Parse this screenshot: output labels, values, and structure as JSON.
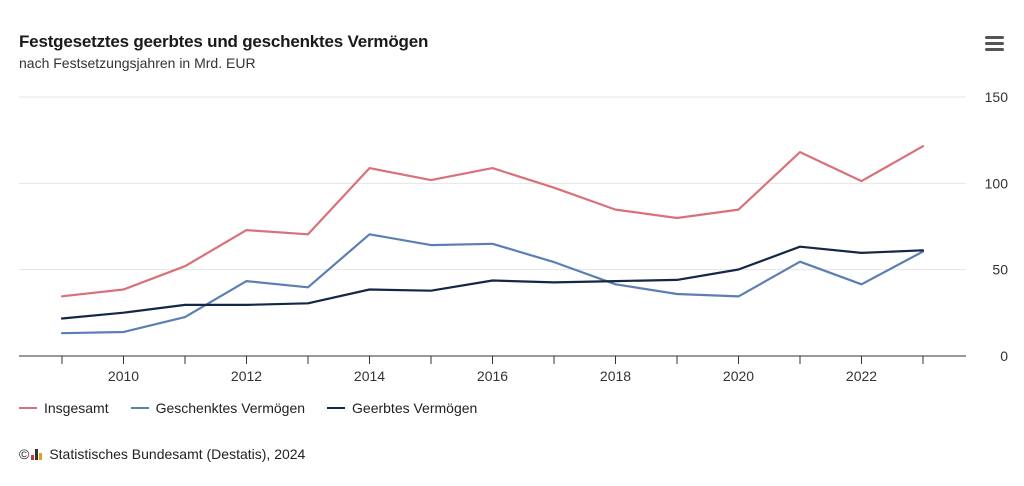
{
  "header": {
    "title": "Festgesetztes geerbtes und geschenktes Vermögen",
    "subtitle": "nach Festsetzungsjahren in Mrd. EUR",
    "menu_icon": "hamburger-menu-icon"
  },
  "credits": {
    "copyright_symbol": "©",
    "text": "Statistisches Bundesamt (Destatis), 2024",
    "logo_icon": "destatis-logo-icon"
  },
  "chart_data": {
    "type": "line",
    "x": [
      2009,
      2010,
      2011,
      2012,
      2013,
      2014,
      2015,
      2016,
      2017,
      2018,
      2019,
      2020,
      2021,
      2022,
      2023
    ],
    "x_tick_labels": [
      "2010",
      "2012",
      "2014",
      "2016",
      "2018",
      "2020",
      "2022"
    ],
    "y_tick_labels": [
      "0",
      "50",
      "100",
      "150"
    ],
    "ylim": [
      0,
      150
    ],
    "xlim": [
      2008.3,
      2023.7
    ],
    "y_axis_side": "right",
    "grid": true,
    "legend_position": "bottom-left",
    "series": [
      {
        "name": "Insgesamt",
        "color": "#d9717a",
        "values": [
          34.6,
          38.5,
          52.0,
          72.9,
          70.5,
          108.8,
          101.9,
          108.8,
          97.5,
          84.8,
          79.9,
          84.8,
          118.1,
          101.3,
          121.5
        ]
      },
      {
        "name": "Geschenktes Vermögen",
        "color": "#5b7fb3",
        "values": [
          13.2,
          13.9,
          22.5,
          43.4,
          39.8,
          70.5,
          64.2,
          65.0,
          54.4,
          41.5,
          35.9,
          34.5,
          54.6,
          41.5,
          60.5
        ]
      },
      {
        "name": "Geerbtes Vermögen",
        "color": "#142747",
        "values": [
          21.7,
          25.1,
          29.6,
          29.6,
          30.5,
          38.5,
          37.8,
          43.7,
          42.6,
          43.4,
          44.1,
          50.1,
          63.3,
          59.7,
          61.2
        ]
      }
    ]
  }
}
